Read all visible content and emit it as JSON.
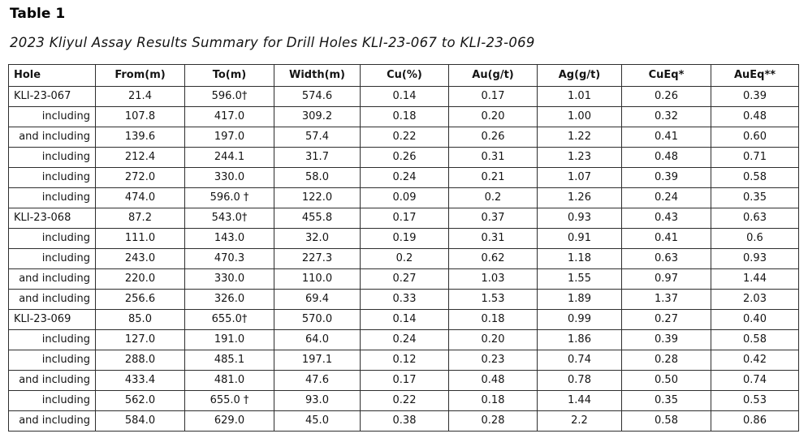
{
  "page": {
    "title": "Table 1",
    "subtitle": "2023 Kliyul Assay Results Summary for Drill Holes KLI-23-067 to KLI-23-069"
  },
  "table": {
    "columns": [
      "Hole",
      "From(m)",
      "To(m)",
      "Width(m)",
      "Cu(%)",
      "Au(g/t)",
      "Ag(g/t)",
      "CuEq*",
      "AuEq**"
    ],
    "footnote_symbol": "†",
    "rows": [
      {
        "primary": true,
        "cells": [
          "KLI-23-067",
          "21.4",
          "596.0†",
          "574.6",
          "0.14",
          "0.17",
          "1.01",
          "0.26",
          "0.39"
        ]
      },
      {
        "primary": false,
        "cells": [
          "including",
          "107.8",
          "417.0",
          "309.2",
          "0.18",
          "0.20",
          "1.00",
          "0.32",
          "0.48"
        ]
      },
      {
        "primary": false,
        "cells": [
          "and including",
          "139.6",
          "197.0",
          "57.4",
          "0.22",
          "0.26",
          "1.22",
          "0.41",
          "0.60"
        ]
      },
      {
        "primary": false,
        "cells": [
          "including",
          "212.4",
          "244.1",
          "31.7",
          "0.26",
          "0.31",
          "1.23",
          "0.48",
          "0.71"
        ]
      },
      {
        "primary": false,
        "cells": [
          "including",
          "272.0",
          "330.0",
          "58.0",
          "0.24",
          "0.21",
          "1.07",
          "0.39",
          "0.58"
        ]
      },
      {
        "primary": false,
        "cells": [
          "including",
          "474.0",
          "596.0 †",
          "122.0",
          "0.09",
          "0.2",
          "1.26",
          "0.24",
          "0.35"
        ]
      },
      {
        "primary": true,
        "cells": [
          "KLI-23-068",
          "87.2",
          "543.0†",
          "455.8",
          "0.17",
          "0.37",
          "0.93",
          "0.43",
          "0.63"
        ]
      },
      {
        "primary": false,
        "cells": [
          "including",
          "111.0",
          "143.0",
          "32.0",
          "0.19",
          "0.31",
          "0.91",
          "0.41",
          "0.6"
        ]
      },
      {
        "primary": false,
        "cells": [
          "including",
          "243.0",
          "470.3",
          "227.3",
          "0.2",
          "0.62",
          "1.18",
          "0.63",
          "0.93"
        ]
      },
      {
        "primary": false,
        "cells": [
          "and including",
          "220.0",
          "330.0",
          "110.0",
          "0.27",
          "1.03",
          "1.55",
          "0.97",
          "1.44"
        ]
      },
      {
        "primary": false,
        "cells": [
          "and including",
          "256.6",
          "326.0",
          "69.4",
          "0.33",
          "1.53",
          "1.89",
          "1.37",
          "2.03"
        ]
      },
      {
        "primary": true,
        "cells": [
          "KLI-23-069",
          "85.0",
          "655.0†",
          "570.0",
          "0.14",
          "0.18",
          "0.99",
          "0.27",
          "0.40"
        ]
      },
      {
        "primary": false,
        "cells": [
          "including",
          "127.0",
          "191.0",
          "64.0",
          "0.24",
          "0.20",
          "1.86",
          "0.39",
          "0.58"
        ]
      },
      {
        "primary": false,
        "cells": [
          "including",
          "288.0",
          "485.1",
          "197.1",
          "0.12",
          "0.23",
          "0.74",
          "0.28",
          "0.42"
        ]
      },
      {
        "primary": false,
        "cells": [
          "and including",
          "433.4",
          "481.0",
          "47.6",
          "0.17",
          "0.48",
          "0.78",
          "0.50",
          "0.74"
        ]
      },
      {
        "primary": false,
        "cells": [
          "including",
          "562.0",
          "655.0 †",
          "93.0",
          "0.22",
          "0.18",
          "1.44",
          "0.35",
          "0.53"
        ]
      },
      {
        "primary": false,
        "cells": [
          "and including",
          "584.0",
          "629.0",
          "45.0",
          "0.38",
          "0.28",
          "2.2",
          "0.58",
          "0.86"
        ]
      }
    ]
  }
}
